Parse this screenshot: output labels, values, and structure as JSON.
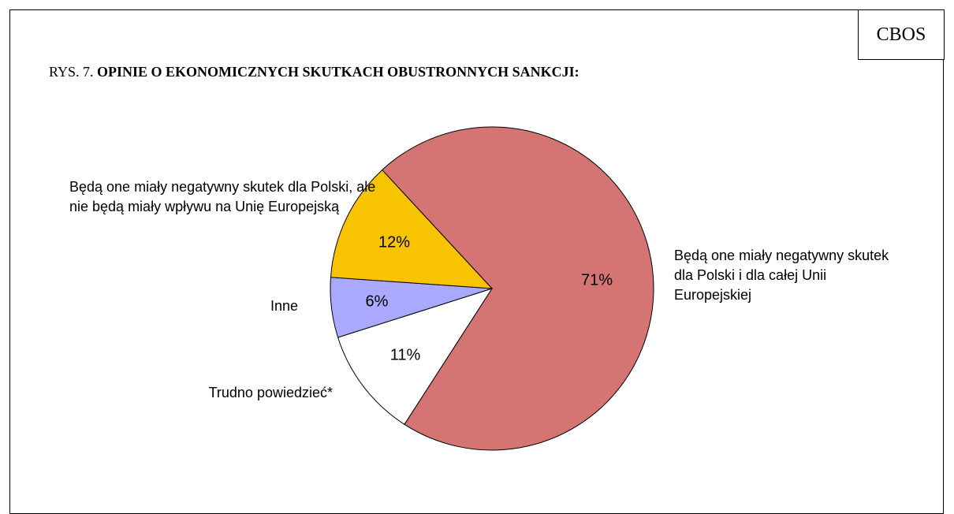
{
  "chart_data": {
    "type": "pie",
    "badge": "CBOS",
    "title_prefix": "RYS. 7.",
    "title": "OPINIE O EKONOMICZNYCH SKUTKACH OBUSTRONNYCH SANKCJI:",
    "categories": [
      "Będą one miały negatywny skutek dla Polski i dla całej Unii Europejskiej",
      "Trudno powiedzieć*",
      "Inne",
      "Będą one miały negatywny skutek dla Polski, ale nie będą miały wpływu na Unię Europejską"
    ],
    "values": [
      71,
      11,
      6,
      12
    ],
    "value_labels": [
      "71%",
      "11%",
      "6%",
      "12%"
    ],
    "colors": [
      "#d47574",
      "#ffffff",
      "#a9a9ff",
      "#f8c300"
    ]
  }
}
